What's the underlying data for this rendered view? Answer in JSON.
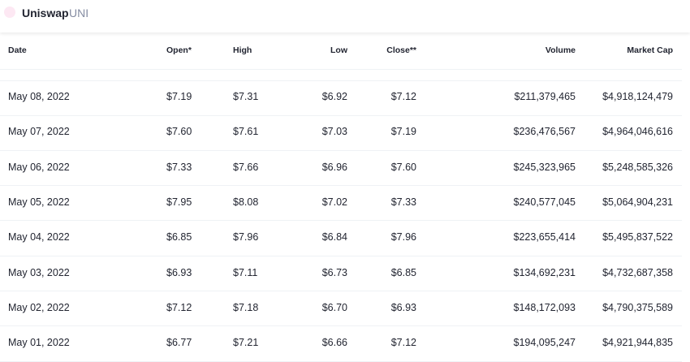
{
  "header": {
    "title": "Uniswap",
    "symbol": "UNI"
  },
  "table": {
    "columns": [
      "Date",
      "Open*",
      "High",
      "Low",
      "Close**",
      "Volume",
      "Market Cap"
    ],
    "rows": [
      [
        "May 08, 2022",
        "$7.19",
        "$7.31",
        "$6.92",
        "$7.12",
        "$211,379,465",
        "$4,918,124,479"
      ],
      [
        "May 07, 2022",
        "$7.60",
        "$7.61",
        "$7.03",
        "$7.19",
        "$236,476,567",
        "$4,964,046,616"
      ],
      [
        "May 06, 2022",
        "$7.33",
        "$7.66",
        "$6.96",
        "$7.60",
        "$245,323,965",
        "$5,248,585,326"
      ],
      [
        "May 05, 2022",
        "$7.95",
        "$8.08",
        "$7.02",
        "$7.33",
        "$240,577,045",
        "$5,064,904,231"
      ],
      [
        "May 04, 2022",
        "$6.85",
        "$7.96",
        "$6.84",
        "$7.96",
        "$223,655,414",
        "$5,495,837,522"
      ],
      [
        "May 03, 2022",
        "$6.93",
        "$7.11",
        "$6.73",
        "$6.85",
        "$134,692,231",
        "$4,732,687,358"
      ],
      [
        "May 02, 2022",
        "$7.12",
        "$7.18",
        "$6.70",
        "$6.93",
        "$148,172,093",
        "$4,790,375,589"
      ],
      [
        "May 01, 2022",
        "$6.77",
        "$7.21",
        "$6.66",
        "$7.12",
        "$194,095,247",
        "$4,921,944,835"
      ]
    ]
  }
}
